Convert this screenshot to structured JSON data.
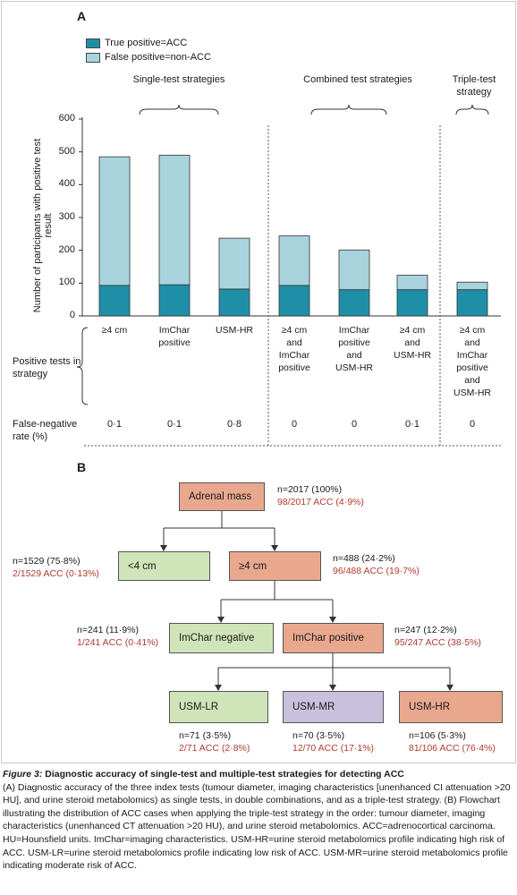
{
  "panel_a_label": "A",
  "panel_b_label": "B",
  "legend": {
    "true_positive": "True positive=ACC",
    "false_positive": "False positive=non-ACC"
  },
  "colors": {
    "true_positive": "#1f8fa8",
    "false_positive": "#a9d3dd",
    "orange_node": "#e9a88e",
    "green_node": "#cfe4b8",
    "purple_node": "#c9c0dd",
    "red_text": "#b03a2e"
  },
  "strategy_heads": {
    "single": "Single-test strategies",
    "combined": "Combined test strategies",
    "triple": "Triple-test strategy"
  },
  "row_labels": {
    "positive_tests": "Positive tests in strategy",
    "false_negative": "False-negative rate (%)"
  },
  "chart_data": {
    "type": "bar",
    "stacked": true,
    "ylabel": "Number of participants with positive test result",
    "ylim": [
      0,
      600
    ],
    "yticks": [
      "0",
      "100",
      "200",
      "300",
      "400",
      "500",
      "600"
    ],
    "categories": [
      "≥4 cm",
      "ImChar positive",
      "USM-HR",
      "≥4 cm and ImChar positive",
      "ImChar positive and USM-HR",
      "≥4 cm and USM-HR",
      "≥4 cm and ImChar positive and USM-HR"
    ],
    "series": [
      {
        "name": "True positive=ACC",
        "values": [
          93,
          95,
          82,
          93,
          80,
          80,
          80
        ]
      },
      {
        "name": "False positive=non-ACC",
        "values": [
          392,
          395,
          155,
          151,
          121,
          44,
          23
        ]
      }
    ],
    "false_negative_rate": [
      "0·1",
      "0·1",
      "0·8",
      "0",
      "0",
      "0·1",
      "0"
    ]
  },
  "flowchart": {
    "adrenal": {
      "label": "Adrenal mass",
      "n": "n=2017 (100%)",
      "acc": "98/2017 ACC (4·9%)"
    },
    "lt4": {
      "label": "<4 cm",
      "n": "n=1529 (75·8%)",
      "acc": "2/1529 ACC (0·13%)"
    },
    "ge4": {
      "label": "≥4 cm",
      "n": "n=488 (24·2%)",
      "acc": "96/488 ACC (19·7%)"
    },
    "imneg": {
      "label": "ImChar negative",
      "n": "n=241 (11·9%)",
      "acc": "1/241 ACC (0·41%)"
    },
    "impos": {
      "label": "ImChar positive",
      "n": "n=247 (12·2%)",
      "acc": "95/247 ACC (38·5%)"
    },
    "usmlr": {
      "label": "USM-LR",
      "n": "n=71 (3·5%)",
      "acc": "2/71 ACC (2·8%)"
    },
    "usmmr": {
      "label": "USM-MR",
      "n": "n=70 (3·5%)",
      "acc": "12/70 ACC (17·1%)"
    },
    "usmhr": {
      "label": "USM-HR",
      "n": "n=106 (5·3%)",
      "acc": "81/106 ACC (76·4%)"
    }
  },
  "caption": {
    "figure_label": "Figure 3:",
    "title": " Diagnostic accuracy of single-test and multiple-test strategies for detecting ACC",
    "body": "(A) Diagnostic accuracy of the three index tests (tumour diameter, imaging characteristics [unenhanced CI attenuation >20 HU], and urine steroid metabolomics) as single tests, in double combinations, and as a triple-test strategy. (B) Flowchart illustrating the distribution of ACC cases  when applying the triple-test strategy in the order: tumour diameter, imaging characteristics (unenhanced CT attenuation >20 HU), and urine steroid metabolomics. ACC=adrenocortical carcinoma. HU=Hounsfield units. ImChar=imaging characteristics. USM-HR=urine steroid metabolomics profile indicating high risk of ACC. USM-LR=urine steroid metabolomics profile  indicating low risk of ACC. USM-MR=urine steroid metabolomics profile indicating moderate risk of ACC."
  }
}
